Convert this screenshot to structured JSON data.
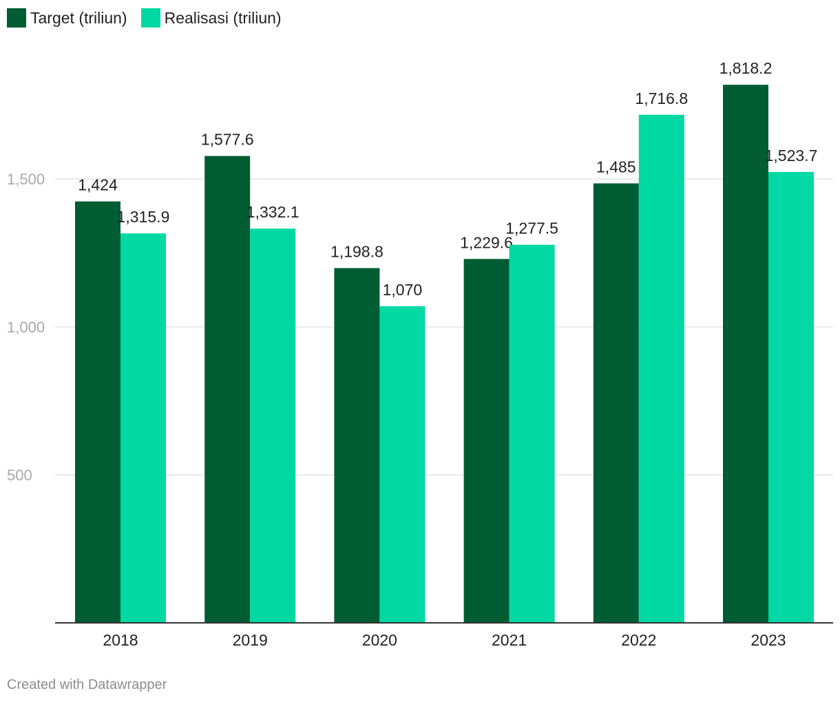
{
  "chart_data": {
    "type": "bar",
    "categories": [
      "2018",
      "2019",
      "2020",
      "2021",
      "2022",
      "2023"
    ],
    "series": [
      {
        "name": "Target (triliun)",
        "color": "#005c33",
        "values": [
          1424,
          1577.6,
          1198.8,
          1229.6,
          1485,
          1818.2
        ],
        "labels": [
          "1,424",
          "1,577.6",
          "1,198.8",
          "1,229.6",
          "1,485",
          "1,818.2"
        ]
      },
      {
        "name": "Realisasi (triliun)",
        "color": "#00d9a4",
        "values": [
          1315.9,
          1332.1,
          1070,
          1277.5,
          1716.8,
          1523.7
        ],
        "labels": [
          "1,315.9",
          "1,332.1",
          "1,070",
          "1,277.5",
          "1,716.8",
          "1,523.7"
        ]
      }
    ],
    "yticks": [
      {
        "value": 500,
        "label": "500"
      },
      {
        "value": 1000,
        "label": "1,000"
      },
      {
        "value": 1500,
        "label": "1,500"
      }
    ],
    "ylim": [
      0,
      2000
    ],
    "grid": true,
    "legend": "top-left"
  },
  "footer": {
    "credit": "Created with Datawrapper"
  }
}
